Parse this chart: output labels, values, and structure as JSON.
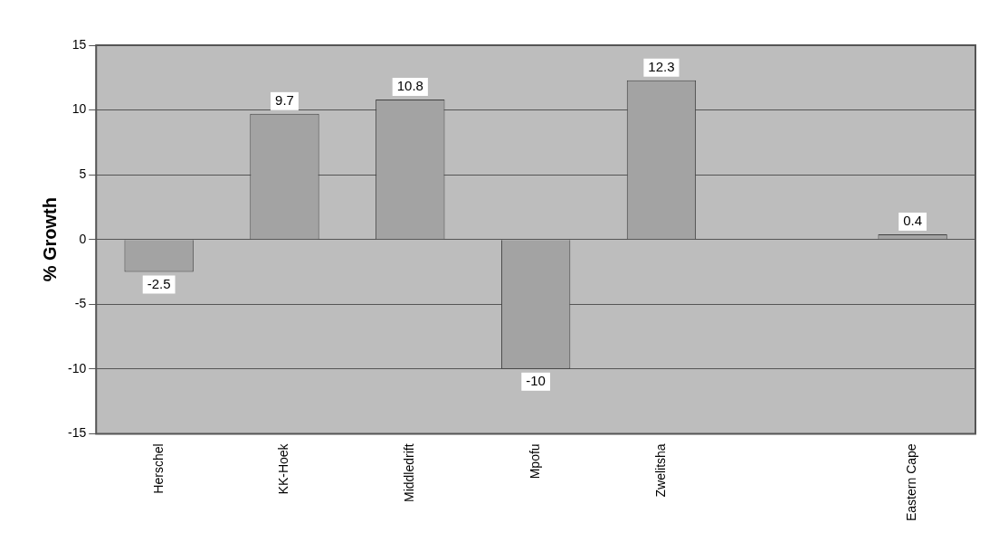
{
  "chart_data": {
    "type": "bar",
    "ylabel": "% Growth",
    "categories": [
      "Herschel",
      "KK-Hoek",
      "Middledrift",
      "Mpofu",
      "Zwelitsha",
      null,
      "Eastern Cape"
    ],
    "values": [
      -2.5,
      9.7,
      10.8,
      -10,
      12.3,
      null,
      0.4
    ],
    "color": "#a3a3a3",
    "ylim": [
      -15,
      15
    ],
    "yticks": [
      -15,
      -10,
      -5,
      0,
      5,
      10,
      15
    ],
    "grid": "y",
    "legend": false,
    "data_labels": true
  }
}
